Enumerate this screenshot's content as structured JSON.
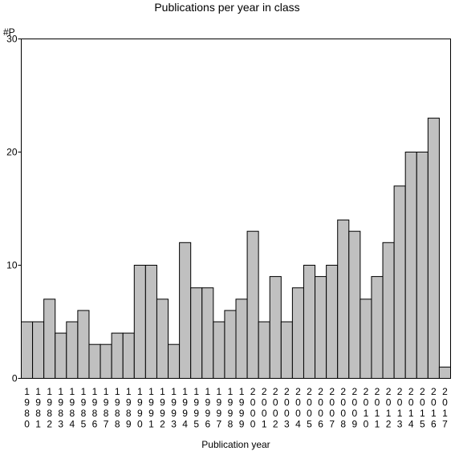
{
  "chart_data": {
    "type": "bar",
    "title": "Publications per year in class",
    "ylabel": "#P",
    "xlabel": "Publication year",
    "ylim": [
      0,
      30
    ],
    "yticks": [
      0,
      10,
      20,
      30
    ],
    "grid": false,
    "legend": "none",
    "bar_color": "#c0c0c0",
    "categories": [
      "1980",
      "1981",
      "1982",
      "1983",
      "1984",
      "1985",
      "1986",
      "1987",
      "1988",
      "1989",
      "1990",
      "1991",
      "1992",
      "1993",
      "1994",
      "1995",
      "1996",
      "1997",
      "1998",
      "1999",
      "2000",
      "2001",
      "2002",
      "2003",
      "2004",
      "2005",
      "2006",
      "2007",
      "2008",
      "2009",
      "2010",
      "2011",
      "2012",
      "2013",
      "2014",
      "2015",
      "2016",
      "2017"
    ],
    "values": [
      5,
      5,
      7,
      4,
      5,
      6,
      3,
      3,
      4,
      4,
      10,
      10,
      7,
      3,
      12,
      8,
      8,
      5,
      6,
      7,
      13,
      5,
      9,
      5,
      8,
      10,
      9,
      10,
      14,
      13,
      7,
      9,
      12,
      17,
      20,
      20,
      23,
      1
    ]
  }
}
